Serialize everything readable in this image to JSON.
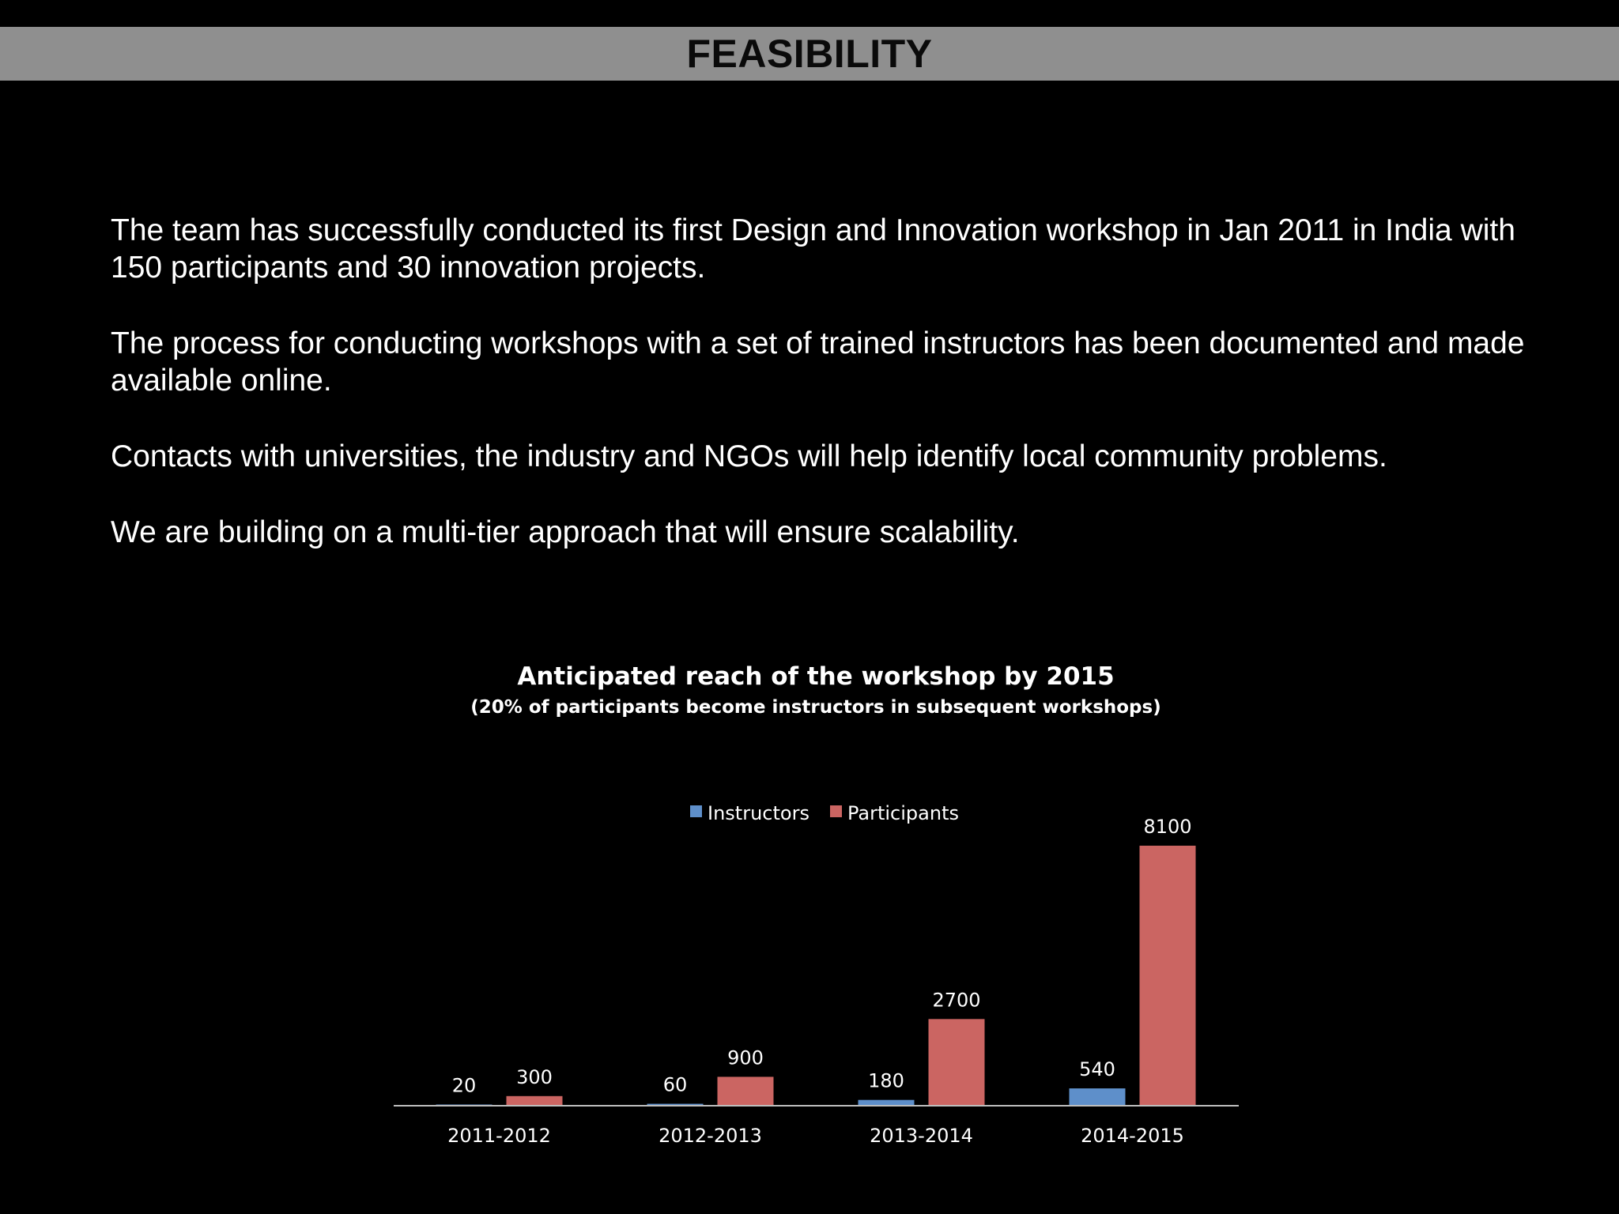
{
  "slide": {
    "title": "FEASIBILITY",
    "paragraphs": [
      "The team has successfully conducted its first Design and Innovation workshop in Jan 2011 in India with 150 participants and 30 innovation projects.",
      "The process for conducting workshops with a set of trained instructors has been documented and made available online.",
      "Contacts with universities, the industry and NGOs will help identify local community problems.",
      "We are building on a multi-tier approach that will ensure scalability."
    ]
  },
  "chart_data": {
    "type": "bar",
    "title": "Anticipated reach of the workshop by 2015",
    "subtitle": "(20% of participants become instructors in subsequent workshops)",
    "categories": [
      "2011-2012",
      "2012-2013",
      "2013-2014",
      "2014-2015"
    ],
    "series": [
      {
        "name": "Instructors",
        "color": "#5e8fca",
        "values": [
          20,
          60,
          180,
          540
        ]
      },
      {
        "name": "Participants",
        "color": "#cb6562",
        "values": [
          300,
          900,
          2700,
          8100
        ]
      }
    ],
    "ylim": [
      0,
      8100
    ],
    "legend": "top-center",
    "grid": false,
    "xlabel": "",
    "ylabel": ""
  }
}
